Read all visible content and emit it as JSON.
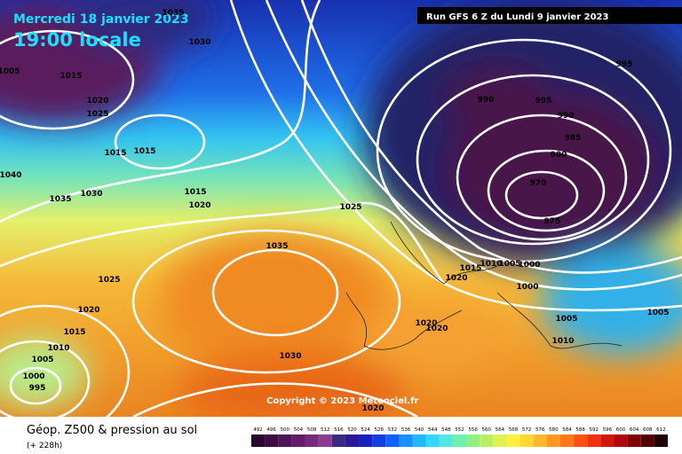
{
  "header": {
    "date": "Mercredi 18 janvier 2023",
    "time": "19:00 locale",
    "run": "Run GFS 6 Z du Lundi 9 janvier 2023"
  },
  "map": {
    "isobar_labels": [
      1035,
      1030,
      1005,
      1015,
      1020,
      1025,
      1015,
      1015,
      1040,
      1030,
      1035,
      1015,
      1020,
      1025,
      1035,
      1025,
      1020,
      1015,
      1010,
      1005,
      1000,
      995,
      1030,
      1015,
      1010,
      1005,
      1000,
      1020,
      1000,
      1020,
      1020,
      1005,
      1005,
      1010,
      995,
      990,
      995,
      990,
      985,
      980,
      970,
      975,
      1020
    ],
    "copyright": "Copyright © 2023 Meteociel.fr"
  },
  "footer": {
    "title": "Géop. Z500 & pression au sol",
    "lead": "(+ 228h)",
    "colorbar": [
      492,
      496,
      500,
      504,
      508,
      512,
      516,
      520,
      524,
      528,
      532,
      536,
      540,
      544,
      548,
      552,
      556,
      560,
      564,
      568,
      572,
      576,
      580,
      584,
      588,
      592,
      596,
      600,
      604,
      608,
      612
    ]
  }
}
